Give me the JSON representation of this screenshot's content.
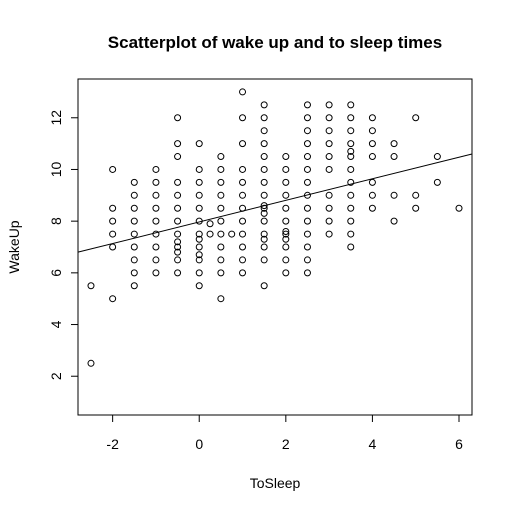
{
  "chart_data": {
    "type": "scatter",
    "title": "Scatterplot of wake up and to sleep times",
    "xlabel": "ToSleep",
    "ylabel": "WakeUp",
    "xlim": [
      -2.8,
      6.3
    ],
    "ylim": [
      0.5,
      13.5
    ],
    "xticks": [
      -2,
      0,
      2,
      4,
      6
    ],
    "yticks": [
      2,
      4,
      6,
      8,
      10,
      12
    ],
    "grid": false,
    "legend": "none",
    "regression_line": {
      "x": [
        -2.8,
        6.3
      ],
      "y": [
        6.8,
        10.6
      ]
    },
    "points": [
      [
        -2.5,
        2.5
      ],
      [
        -2.5,
        5.5
      ],
      [
        -2,
        5
      ],
      [
        -2,
        7
      ],
      [
        -2,
        7.5
      ],
      [
        -2,
        8
      ],
      [
        -2,
        8.5
      ],
      [
        -2,
        10
      ],
      [
        -1.5,
        5.5
      ],
      [
        -1.5,
        6
      ],
      [
        -1.5,
        6.5
      ],
      [
        -1.5,
        7
      ],
      [
        -1.5,
        7.5
      ],
      [
        -1.5,
        8
      ],
      [
        -1.5,
        8.5
      ],
      [
        -1.5,
        9
      ],
      [
        -1.5,
        9.5
      ],
      [
        -1,
        6
      ],
      [
        -1,
        6.5
      ],
      [
        -1,
        7
      ],
      [
        -1,
        7.5
      ],
      [
        -1,
        8
      ],
      [
        -1,
        8.5
      ],
      [
        -1,
        9
      ],
      [
        -1,
        9.5
      ],
      [
        -1,
        10
      ],
      [
        -0.5,
        6
      ],
      [
        -0.5,
        6.5
      ],
      [
        -0.5,
        6.8
      ],
      [
        -0.5,
        7
      ],
      [
        -0.5,
        7.2
      ],
      [
        -0.5,
        7.5
      ],
      [
        -0.5,
        8
      ],
      [
        -0.5,
        8.5
      ],
      [
        -0.5,
        9
      ],
      [
        -0.5,
        9.5
      ],
      [
        -0.5,
        10.5
      ],
      [
        -0.5,
        11
      ],
      [
        -0.5,
        12
      ],
      [
        0,
        5.5
      ],
      [
        0,
        6
      ],
      [
        0,
        6.5
      ],
      [
        0,
        6.7
      ],
      [
        0,
        7
      ],
      [
        0,
        7.3
      ],
      [
        0,
        7.5
      ],
      [
        0,
        8
      ],
      [
        0,
        8.5
      ],
      [
        0,
        9
      ],
      [
        0,
        9.5
      ],
      [
        0,
        10
      ],
      [
        0,
        11
      ],
      [
        0.25,
        7.5
      ],
      [
        0.25,
        7.9
      ],
      [
        0.5,
        5
      ],
      [
        0.5,
        6
      ],
      [
        0.5,
        6.5
      ],
      [
        0.5,
        7
      ],
      [
        0.5,
        7.5
      ],
      [
        0.5,
        8
      ],
      [
        0.5,
        8.5
      ],
      [
        0.5,
        9
      ],
      [
        0.5,
        9.5
      ],
      [
        0.5,
        10
      ],
      [
        0.5,
        10.5
      ],
      [
        0.75,
        7.5
      ],
      [
        1,
        6
      ],
      [
        1,
        6.5
      ],
      [
        1,
        7
      ],
      [
        1,
        7.5
      ],
      [
        1,
        8
      ],
      [
        1,
        8.5
      ],
      [
        1,
        9
      ],
      [
        1,
        9.5
      ],
      [
        1,
        10
      ],
      [
        1,
        11
      ],
      [
        1,
        12
      ],
      [
        1,
        13
      ],
      [
        1.5,
        5.5
      ],
      [
        1.5,
        6.5
      ],
      [
        1.5,
        7
      ],
      [
        1.5,
        7.3
      ],
      [
        1.5,
        7.5
      ],
      [
        1.5,
        8
      ],
      [
        1.5,
        8.3
      ],
      [
        1.5,
        8.5
      ],
      [
        1.5,
        8.6
      ],
      [
        1.5,
        9
      ],
      [
        1.5,
        9.5
      ],
      [
        1.5,
        10
      ],
      [
        1.5,
        10.5
      ],
      [
        1.5,
        11
      ],
      [
        1.5,
        11.5
      ],
      [
        1.5,
        12
      ],
      [
        1.5,
        12.5
      ],
      [
        2,
        6
      ],
      [
        2,
        6.5
      ],
      [
        2,
        7
      ],
      [
        2,
        7.3
      ],
      [
        2,
        7.5
      ],
      [
        2,
        7.6
      ],
      [
        2,
        8
      ],
      [
        2,
        8.5
      ],
      [
        2,
        9
      ],
      [
        2,
        9.5
      ],
      [
        2,
        10
      ],
      [
        2,
        10.5
      ],
      [
        2.5,
        6
      ],
      [
        2.5,
        6.5
      ],
      [
        2.5,
        7
      ],
      [
        2.5,
        7.5
      ],
      [
        2.5,
        8
      ],
      [
        2.5,
        8.5
      ],
      [
        2.5,
        9
      ],
      [
        2.5,
        9.5
      ],
      [
        2.5,
        10
      ],
      [
        2.5,
        10.5
      ],
      [
        2.5,
        11
      ],
      [
        2.5,
        11.5
      ],
      [
        2.5,
        12
      ],
      [
        2.5,
        12.5
      ],
      [
        3,
        7.5
      ],
      [
        3,
        8
      ],
      [
        3,
        8.5
      ],
      [
        3,
        9
      ],
      [
        3,
        10
      ],
      [
        3,
        10.5
      ],
      [
        3,
        11
      ],
      [
        3,
        11.5
      ],
      [
        3,
        12
      ],
      [
        3,
        12.5
      ],
      [
        3.5,
        7
      ],
      [
        3.5,
        7.5
      ],
      [
        3.5,
        8
      ],
      [
        3.5,
        8.5
      ],
      [
        3.5,
        9
      ],
      [
        3.5,
        9.5
      ],
      [
        3.5,
        10
      ],
      [
        3.5,
        10.5
      ],
      [
        3.5,
        10.7
      ],
      [
        3.5,
        11
      ],
      [
        3.5,
        11.5
      ],
      [
        3.5,
        12
      ],
      [
        3.5,
        12.5
      ],
      [
        4,
        8.5
      ],
      [
        4,
        9
      ],
      [
        4,
        9.5
      ],
      [
        4,
        10.5
      ],
      [
        4,
        11
      ],
      [
        4,
        11.5
      ],
      [
        4,
        12
      ],
      [
        4.5,
        8
      ],
      [
        4.5,
        9
      ],
      [
        4.5,
        10.5
      ],
      [
        4.5,
        11
      ],
      [
        5,
        8.5
      ],
      [
        5,
        9
      ],
      [
        5,
        12
      ],
      [
        5.5,
        9.5
      ],
      [
        5.5,
        10.5
      ],
      [
        6,
        8.5
      ]
    ]
  }
}
